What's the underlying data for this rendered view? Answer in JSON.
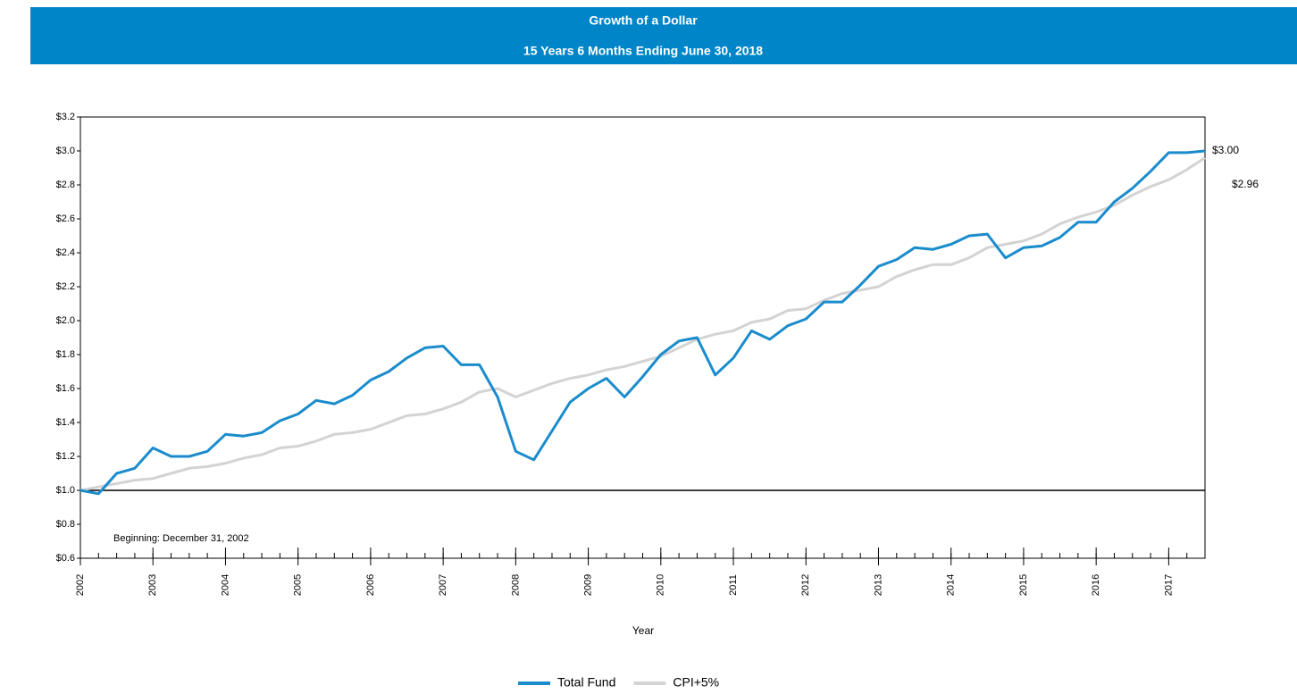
{
  "chart_data": {
    "type": "line",
    "title": "Growth of a Dollar",
    "subtitle": "15 Years 6 Months Ending June 30, 2018",
    "x_label": "Year",
    "annotation": "Beginning: December 31, 2002",
    "x": [
      2002,
      2002.25,
      2002.5,
      2002.75,
      2003,
      2003.25,
      2003.5,
      2003.75,
      2004,
      2004.25,
      2004.5,
      2004.75,
      2005,
      2005.25,
      2005.5,
      2005.75,
      2006,
      2006.25,
      2006.5,
      2006.75,
      2007,
      2007.25,
      2007.5,
      2007.75,
      2008,
      2008.25,
      2008.5,
      2008.75,
      2009,
      2009.25,
      2009.5,
      2009.75,
      2010,
      2010.25,
      2010.5,
      2010.75,
      2011,
      2011.25,
      2011.5,
      2011.75,
      2012,
      2012.25,
      2012.5,
      2012.75,
      2013,
      2013.25,
      2013.5,
      2013.75,
      2014,
      2014.25,
      2014.5,
      2014.75,
      2015,
      2015.25,
      2015.5,
      2015.75,
      2016,
      2016.25,
      2016.5,
      2016.75,
      2017,
      2017.25,
      2017.5
    ],
    "series": [
      {
        "name": "Total Fund",
        "color": "#1a8ccc",
        "end_label": "$3.00",
        "values": [
          1.0,
          0.98,
          1.1,
          1.13,
          1.25,
          1.2,
          1.2,
          1.23,
          1.33,
          1.32,
          1.34,
          1.41,
          1.45,
          1.53,
          1.51,
          1.56,
          1.65,
          1.7,
          1.78,
          1.84,
          1.85,
          1.74,
          1.74,
          1.55,
          1.23,
          1.18,
          1.35,
          1.52,
          1.6,
          1.66,
          1.55,
          1.67,
          1.8,
          1.88,
          1.9,
          1.68,
          1.78,
          1.94,
          1.89,
          1.97,
          2.01,
          2.11,
          2.11,
          2.21,
          2.32,
          2.36,
          2.43,
          2.42,
          2.45,
          2.5,
          2.51,
          2.37,
          2.43,
          2.44,
          2.49,
          2.58,
          2.58,
          2.7,
          2.78,
          2.88,
          2.99,
          2.99,
          3.0
        ]
      },
      {
        "name": "CPI+5%",
        "color": "#d3d3d3",
        "end_label": "$2.96",
        "values": [
          1.0,
          1.02,
          1.04,
          1.06,
          1.07,
          1.1,
          1.13,
          1.14,
          1.16,
          1.19,
          1.21,
          1.25,
          1.26,
          1.29,
          1.33,
          1.34,
          1.36,
          1.4,
          1.44,
          1.45,
          1.48,
          1.52,
          1.58,
          1.6,
          1.55,
          1.59,
          1.63,
          1.66,
          1.68,
          1.71,
          1.73,
          1.76,
          1.79,
          1.84,
          1.89,
          1.92,
          1.94,
          1.99,
          2.01,
          2.06,
          2.07,
          2.12,
          2.16,
          2.18,
          2.2,
          2.26,
          2.3,
          2.33,
          2.33,
          2.37,
          2.43,
          2.45,
          2.47,
          2.51,
          2.57,
          2.61,
          2.64,
          2.68,
          2.74,
          2.79,
          2.83,
          2.89,
          2.96
        ]
      }
    ],
    "xlim": [
      2002,
      2017.5
    ],
    "xticks": [
      2002,
      2003,
      2004,
      2005,
      2006,
      2007,
      2008,
      2009,
      2010,
      2011,
      2012,
      2013,
      2014,
      2015,
      2016,
      2017
    ],
    "ylim": [
      0.6,
      3.2
    ],
    "yticks": [
      {
        "value": 0.6,
        "label": "$0.6"
      },
      {
        "value": 0.8,
        "label": "$0.8"
      },
      {
        "value": 1.0,
        "label": "$1.0"
      },
      {
        "value": 1.2,
        "label": "$1.2"
      },
      {
        "value": 1.4,
        "label": "$1.4"
      },
      {
        "value": 1.6,
        "label": "$1.6"
      },
      {
        "value": 1.8,
        "label": "$1.8"
      },
      {
        "value": 2.0,
        "label": "$2.0"
      },
      {
        "value": 2.2,
        "label": "$2.2"
      },
      {
        "value": 2.4,
        "label": "$2.4"
      },
      {
        "value": 2.6,
        "label": "$2.6"
      },
      {
        "value": 2.8,
        "label": "$2.8"
      },
      {
        "value": 3.0,
        "label": "$3.0"
      },
      {
        "value": 3.2,
        "label": "$3.2"
      }
    ],
    "baseline": 1.0,
    "legend": "bottom"
  }
}
